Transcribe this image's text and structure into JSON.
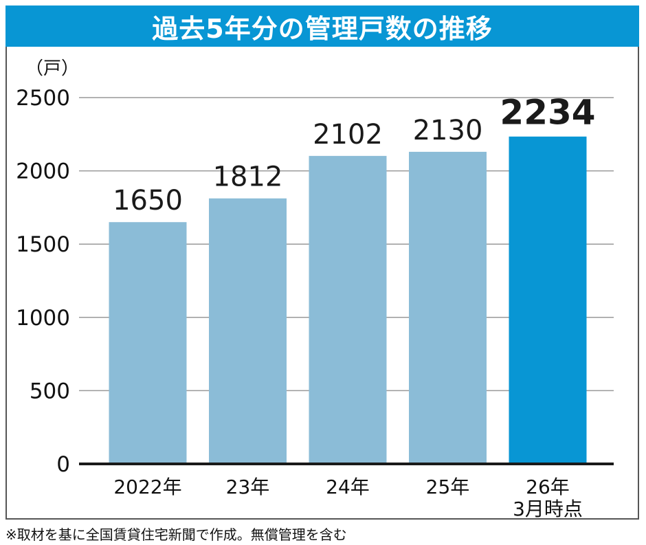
{
  "chart_data": {
    "type": "bar",
    "title": "過去5年分の管理戸数の推移",
    "unit_label": "（戸）",
    "categories": [
      "2022年",
      "23年",
      "24年",
      "25年",
      "26年\n3月時点"
    ],
    "category_lines": [
      [
        "2022年"
      ],
      [
        "23年"
      ],
      [
        "24年"
      ],
      [
        "25年"
      ],
      [
        "26年",
        "3月時点"
      ]
    ],
    "values": [
      1650,
      1812,
      2102,
      2130,
      2234
    ],
    "value_labels": [
      "1650",
      "1812",
      "2102",
      "2130",
      "2234"
    ],
    "highlight_index": 4,
    "ylim": [
      0,
      2500
    ],
    "yticks": [
      0,
      500,
      1000,
      1500,
      2000,
      2500
    ],
    "ytick_labels": [
      "0",
      "500",
      "1000",
      "1500",
      "2000",
      "2500"
    ],
    "grid": true,
    "colors": {
      "bar": "#8bbcd7",
      "highlight": "#0896d4",
      "title_bg": "#0896d4",
      "grid": "#999999",
      "axis": "#1a1a1a"
    }
  },
  "footnote": "※取材を基に全国賃貸住宅新聞で作成。無償管理を含む"
}
